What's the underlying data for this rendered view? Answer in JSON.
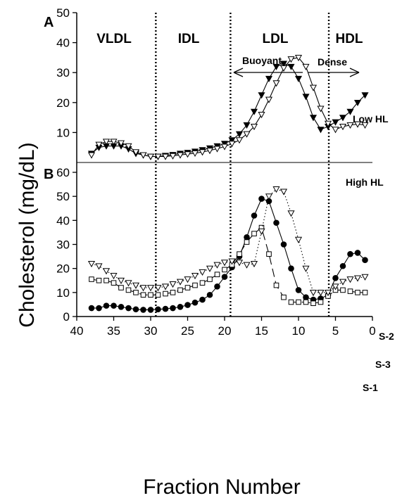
{
  "chart_data": {
    "type": "line",
    "xlabel": "Fraction Number",
    "ylabel": "Cholesterol (mg/dL)",
    "x_axis": {
      "ticks": [
        "40",
        "35",
        "30",
        "25",
        "20",
        "15",
        "10",
        "5",
        "0"
      ],
      "range": [
        40,
        0
      ],
      "reversed": true
    },
    "region_dividers_x": [
      29.3,
      19.2,
      5.9
    ],
    "panels": [
      {
        "panel": "A",
        "y_ticks": [
          "10",
          "20",
          "30",
          "40",
          "50"
        ],
        "ylim": [
          0,
          50
        ],
        "region_labels": [
          "VLDL",
          "IDL",
          "LDL",
          "HDL"
        ],
        "annotations": {
          "buoyant": "Buoyant",
          "dense": "Dense"
        },
        "series": [
          {
            "name": "Low HL",
            "marker": "triangle-down-filled",
            "line": "solid",
            "x": [
              38,
              37,
              36,
              35,
              34,
              33,
              32,
              31,
              30,
              29,
              28,
              27,
              26,
              25,
              24,
              23,
              22,
              21,
              20,
              19,
              18,
              17,
              16,
              15,
              14,
              13,
              12,
              11,
              10,
              9,
              8,
              7,
              6,
              5,
              4,
              3,
              2,
              1
            ],
            "y": [
              3,
              5,
              5.5,
              5.5,
              5.5,
              4.5,
              3,
              2.5,
              2,
              2,
              2.3,
              2.6,
              3,
              3.3,
              3.7,
              4.2,
              4.8,
              5.5,
              6.3,
              7.5,
              9.5,
              12.5,
              17,
              22.5,
              28,
              32,
              33,
              32,
              28,
              22,
              15,
              11,
              12,
              13.5,
              15,
              17,
              20,
              22.5
            ]
          },
          {
            "name": "High HL",
            "marker": "triangle-down-open",
            "line": "solid",
            "x": [
              38,
              37,
              36,
              35,
              34,
              33,
              32,
              31,
              30,
              29,
              28,
              27,
              26,
              25,
              24,
              23,
              22,
              21,
              20,
              19,
              18,
              17,
              16,
              15,
              14,
              13,
              12,
              11,
              10,
              9,
              8,
              7,
              6,
              5,
              4,
              3,
              2,
              1
            ],
            "y": [
              2.5,
              6,
              7,
              7,
              6.5,
              5.5,
              3.5,
              2.5,
              2,
              2,
              2,
              2.2,
              2.5,
              2.8,
              3.1,
              3.5,
              4,
              4.6,
              5.3,
              6.3,
              7.5,
              9.5,
              12,
              16,
              21,
              26.5,
              31.5,
              34.5,
              35,
              32,
              25,
              18,
              13,
              11,
              12,
              12.5,
              12.8,
              12.5
            ]
          }
        ]
      },
      {
        "panel": "B",
        "y_ticks": [
          "0",
          "10",
          "20",
          "30",
          "40",
          "50",
          "60"
        ],
        "ylim": [
          0,
          60
        ],
        "series": [
          {
            "name": "S-2",
            "marker": "circle-filled",
            "line": "solid",
            "x": [
              38,
              37,
              36,
              35,
              34,
              33,
              32,
              31,
              30,
              29,
              28,
              27,
              26,
              25,
              24,
              23,
              22,
              21,
              20,
              19,
              18,
              17,
              16,
              15,
              14,
              13,
              12,
              11,
              10,
              9,
              8,
              7,
              6,
              5,
              4,
              3,
              2,
              1
            ],
            "y": [
              3.5,
              3.5,
              4.5,
              4.5,
              4,
              3.5,
              3,
              2.8,
              2.8,
              3,
              3.2,
              3.5,
              4,
              4.8,
              5.8,
              7,
              9,
              12.5,
              16.5,
              20.5,
              25,
              33,
              42,
              49,
              48,
              39,
              30,
              20,
              11,
              8,
              7,
              7.5,
              9,
              16,
              21,
              26,
              26.5,
              23.5
            ]
          },
          {
            "name": "S-1",
            "marker": "square-open",
            "line": "longdash",
            "x": [
              38,
              37,
              36,
              35,
              34,
              33,
              32,
              31,
              30,
              29,
              28,
              27,
              26,
              25,
              24,
              23,
              22,
              21,
              20,
              19,
              18,
              17,
              16,
              15,
              14,
              13,
              12,
              11,
              10,
              9,
              8,
              7,
              6,
              5,
              4,
              3,
              2,
              1
            ],
            "y": [
              15.5,
              15,
              15,
              14,
              12,
              11,
              10,
              9,
              9,
              9,
              9.5,
              10,
              11,
              12,
              13,
              14,
              15.5,
              17.5,
              19.5,
              21.5,
              26,
              31,
              34.5,
              37,
              26,
              13,
              8,
              6,
              6,
              6,
              5.5,
              6,
              8.5,
              11,
              11,
              10.5,
              10,
              10
            ]
          },
          {
            "name": "S-3",
            "marker": "triangle-down-open",
            "line": "dotted",
            "x": [
              38,
              37,
              36,
              35,
              34,
              33,
              32,
              31,
              30,
              29,
              28,
              27,
              26,
              25,
              24,
              23,
              22,
              21,
              20,
              19,
              18,
              17,
              16,
              15,
              14,
              13,
              12,
              11,
              10,
              9,
              8,
              7,
              6,
              5,
              4,
              3,
              2,
              1
            ],
            "y": [
              22,
              21,
              19,
              17,
              15,
              14,
              13,
              12,
              12,
              12,
              12.5,
              13.5,
              14.5,
              15.5,
              17,
              18.5,
              20,
              21.5,
              22.5,
              23,
              22.5,
              21.5,
              22,
              35.5,
              50,
              53,
              52,
              43,
              32,
              20,
              10,
              10,
              10,
              12.5,
              14.5,
              15.5,
              16,
              16.5
            ]
          }
        ]
      }
    ]
  }
}
